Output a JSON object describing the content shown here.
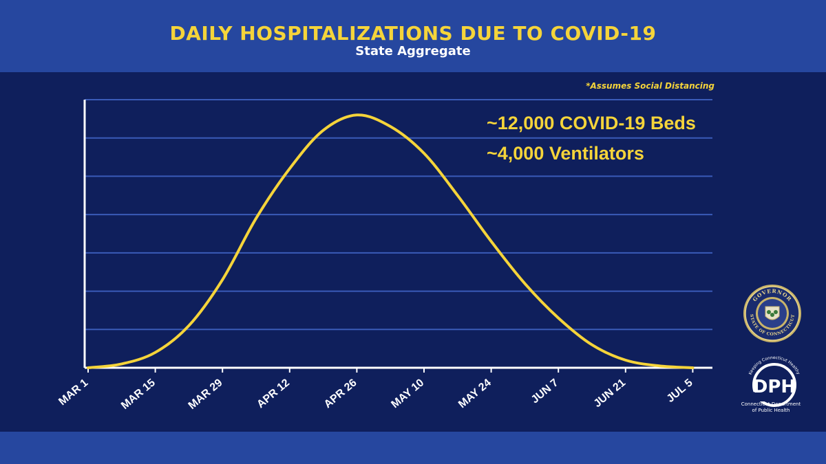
{
  "header": {
    "title": "DAILY HOSPITALIZATIONS DUE TO COVID-19",
    "subtitle": "State Aggregate"
  },
  "note": "*Assumes Social Distancing",
  "annotations": {
    "beds": "~12,000 COVID-19 Beds",
    "ventilators": "~4,000 Ventilators"
  },
  "logos": {
    "seal_top_text": "GOVERNOR",
    "seal_bottom_text": "STATE OF CONNECTICUT",
    "dph_tagline": "Keeping Connecticut Healthy",
    "dph_letters": "DPH",
    "dph_caption_line1": "Connecticut Department",
    "dph_caption_line2": "of Public Health"
  },
  "colors": {
    "header_band": "#26479f",
    "plot_background": "#0f1f5c",
    "accent_yellow": "#f5d43a",
    "gridline": "#3a5bb8",
    "axis": "#ffffff"
  },
  "chart_data": {
    "type": "line",
    "title": "DAILY HOSPITALIZATIONS DUE TO COVID-19",
    "subtitle": "State Aggregate",
    "xlabel": "",
    "ylabel": "",
    "x_tick_labels": [
      "MAR 1",
      "MAR 15",
      "MAR 29",
      "APR 12",
      "APR 26",
      "MAY 10",
      "MAY 24",
      "JUN 7",
      "JUN 21",
      "JUL 5"
    ],
    "x_range": [
      "MAR 1",
      "JUL 5"
    ],
    "y_range": [
      0,
      7
    ],
    "gridlines": 7,
    "grid": true,
    "series": [
      {
        "x": [
          "MAR 1",
          "MAR 8",
          "MAR 15",
          "MAR 22",
          "MAR 29",
          "APR 5",
          "APR 12",
          "APR 19",
          "APR 26",
          "MAY 3",
          "MAY 10",
          "MAY 17",
          "MAY 24",
          "MAY 31",
          "JUN 7",
          "JUN 14",
          "JUN 21",
          "JUN 28",
          "JUL 5"
        ],
        "y": [
          0.0,
          0.1,
          0.4,
          1.1,
          2.3,
          3.9,
          5.2,
          6.2,
          6.6,
          6.3,
          5.6,
          4.5,
          3.3,
          2.2,
          1.3,
          0.6,
          0.2,
          0.05,
          0.0
        ]
      }
    ]
  }
}
